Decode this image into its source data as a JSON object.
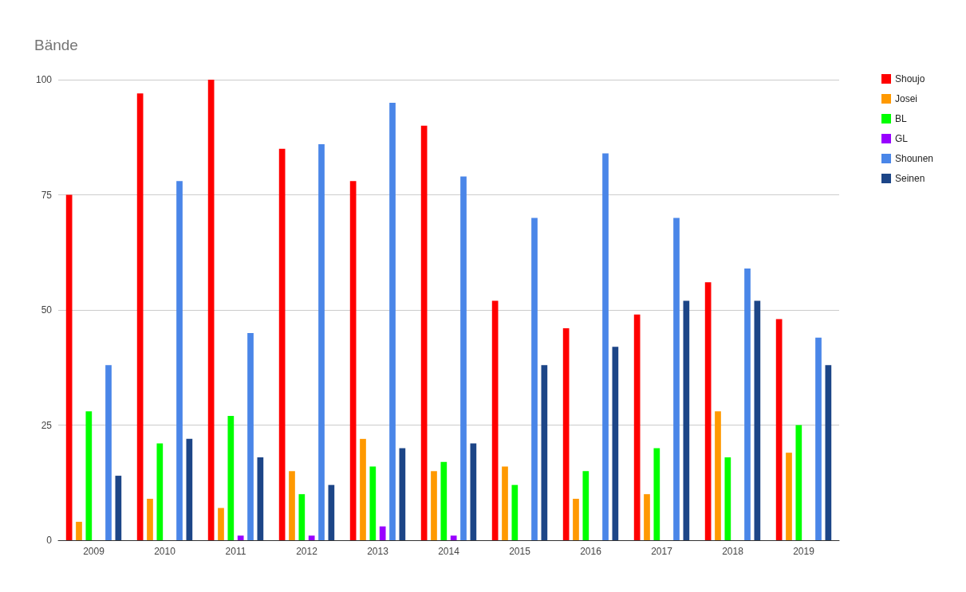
{
  "chart_data": {
    "type": "bar",
    "title": "Bände",
    "categories": [
      "2009",
      "2010",
      "2011",
      "2012",
      "2013",
      "2014",
      "2015",
      "2016",
      "2017",
      "2018",
      "2019"
    ],
    "series": [
      {
        "name": "Shoujo",
        "color": "#ff0000",
        "values": [
          75,
          97,
          100,
          85,
          78,
          90,
          52,
          46,
          49,
          56,
          48
        ]
      },
      {
        "name": "Josei",
        "color": "#ff9900",
        "values": [
          4,
          9,
          7,
          15,
          22,
          15,
          16,
          9,
          10,
          28,
          19
        ]
      },
      {
        "name": "BL",
        "color": "#00ff00",
        "values": [
          28,
          21,
          27,
          10,
          16,
          17,
          12,
          15,
          20,
          18,
          25
        ]
      },
      {
        "name": "GL",
        "color": "#9900ff",
        "values": [
          null,
          null,
          1,
          1,
          3,
          1,
          null,
          null,
          null,
          null,
          null
        ]
      },
      {
        "name": "Shounen",
        "color": "#4a86e8",
        "values": [
          38,
          78,
          45,
          86,
          95,
          79,
          70,
          84,
          70,
          59,
          44
        ]
      },
      {
        "name": "Seinen",
        "color": "#1c4587",
        "values": [
          14,
          22,
          18,
          12,
          20,
          21,
          38,
          42,
          52,
          52,
          38
        ]
      }
    ],
    "ylim": [
      0,
      100
    ],
    "yticks": [
      0,
      25,
      50,
      75,
      100
    ],
    "grid": "y",
    "legend": "right"
  }
}
